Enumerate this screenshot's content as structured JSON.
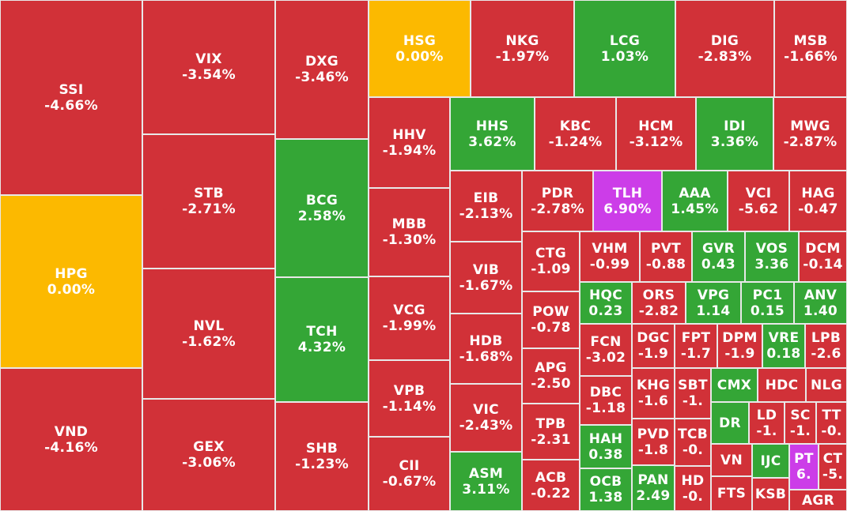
{
  "colors": {
    "down": "#d13138",
    "up": "#34a636",
    "reference": "#fcb900",
    "ceiling": "#cc3de8"
  },
  "chart_data": {
    "type": "treemap",
    "items": [
      {
        "ticker": "SSI",
        "change": "-4.66%",
        "status": "down"
      },
      {
        "ticker": "HPG",
        "change": "0.00%",
        "status": "reference"
      },
      {
        "ticker": "VND",
        "change": "-4.16%",
        "status": "down"
      },
      {
        "ticker": "VIX",
        "change": "-3.54%",
        "status": "down"
      },
      {
        "ticker": "STB",
        "change": "-2.71%",
        "status": "down"
      },
      {
        "ticker": "NVL",
        "change": "-1.62%",
        "status": "down"
      },
      {
        "ticker": "GEX",
        "change": "-3.06%",
        "status": "down"
      },
      {
        "ticker": "DXG",
        "change": "-3.46%",
        "status": "down"
      },
      {
        "ticker": "BCG",
        "change": "2.58%",
        "status": "up"
      },
      {
        "ticker": "TCH",
        "change": "4.32%",
        "status": "up"
      },
      {
        "ticker": "SHB",
        "change": "-1.23%",
        "status": "down"
      },
      {
        "ticker": "HSG",
        "change": "0.00%",
        "status": "reference"
      },
      {
        "ticker": "NKG",
        "change": "-1.97%",
        "status": "down"
      },
      {
        "ticker": "LCG",
        "change": "1.03%",
        "status": "up"
      },
      {
        "ticker": "DIG",
        "change": "-2.83%",
        "status": "down"
      },
      {
        "ticker": "MSB",
        "change": "-1.66%",
        "status": "down"
      },
      {
        "ticker": "HHV",
        "change": "-1.94%",
        "status": "down"
      },
      {
        "ticker": "MBB",
        "change": "-1.30%",
        "status": "down"
      },
      {
        "ticker": "VCG",
        "change": "-1.99%",
        "status": "down"
      },
      {
        "ticker": "VPB",
        "change": "-1.14%",
        "status": "down"
      },
      {
        "ticker": "CII",
        "change": "-0.67%",
        "status": "down"
      },
      {
        "ticker": "HHS",
        "change": "3.62%",
        "status": "up"
      },
      {
        "ticker": "KBC",
        "change": "-1.24%",
        "status": "down"
      },
      {
        "ticker": "HCM",
        "change": "-3.12%",
        "status": "down"
      },
      {
        "ticker": "IDI",
        "change": "3.36%",
        "status": "up"
      },
      {
        "ticker": "MWG",
        "change": "-2.87%",
        "status": "down"
      },
      {
        "ticker": "EIB",
        "change": "-2.13%",
        "status": "down"
      },
      {
        "ticker": "VIB",
        "change": "-1.67%",
        "status": "down"
      },
      {
        "ticker": "HDB",
        "change": "-1.68%",
        "status": "down"
      },
      {
        "ticker": "VIC",
        "change": "-2.43%",
        "status": "down"
      },
      {
        "ticker": "ASM",
        "change": "3.11%",
        "status": "up"
      },
      {
        "ticker": "PDR",
        "change": "-2.78%",
        "status": "down"
      },
      {
        "ticker": "TLH",
        "change": "6.90%",
        "status": "ceiling"
      },
      {
        "ticker": "AAA",
        "change": "1.45%",
        "status": "up"
      },
      {
        "ticker": "VCI",
        "change": "-5.62",
        "status": "down"
      },
      {
        "ticker": "HAG",
        "change": "-0.47",
        "status": "down"
      },
      {
        "ticker": "CTG",
        "change": "-1.09",
        "status": "down"
      },
      {
        "ticker": "POW",
        "change": "-0.78",
        "status": "down"
      },
      {
        "ticker": "APG",
        "change": "-2.50",
        "status": "down"
      },
      {
        "ticker": "TPB",
        "change": "-2.31",
        "status": "down"
      },
      {
        "ticker": "ACB",
        "change": "-0.22",
        "status": "down"
      },
      {
        "ticker": "VHM",
        "change": "-0.99",
        "status": "down"
      },
      {
        "ticker": "PVT",
        "change": "-0.88",
        "status": "down"
      },
      {
        "ticker": "GVR",
        "change": "0.43",
        "status": "up"
      },
      {
        "ticker": "VOS",
        "change": "3.36",
        "status": "up"
      },
      {
        "ticker": "DCM",
        "change": "-0.14",
        "status": "down"
      },
      {
        "ticker": "HQC",
        "change": "0.23",
        "status": "up"
      },
      {
        "ticker": "ORS",
        "change": "-2.82",
        "status": "down"
      },
      {
        "ticker": "VPG",
        "change": "1.14",
        "status": "up"
      },
      {
        "ticker": "PC1",
        "change": "0.15",
        "status": "up"
      },
      {
        "ticker": "ANV",
        "change": "1.40",
        "status": "up"
      },
      {
        "ticker": "FCN",
        "change": "-3.02",
        "status": "down"
      },
      {
        "ticker": "DGC",
        "change": "-1.9",
        "status": "down"
      },
      {
        "ticker": "FPT",
        "change": "-1.7",
        "status": "down"
      },
      {
        "ticker": "DPM",
        "change": "-1.9",
        "status": "down"
      },
      {
        "ticker": "VRE",
        "change": "0.18",
        "status": "up"
      },
      {
        "ticker": "LPB",
        "change": "-2.6",
        "status": "down"
      },
      {
        "ticker": "DBC",
        "change": "-1.18",
        "status": "down"
      },
      {
        "ticker": "KHG",
        "change": "-1.6",
        "status": "down"
      },
      {
        "ticker": "SBT",
        "change": "-1.",
        "status": "down"
      },
      {
        "ticker": "CMX",
        "change": "",
        "status": "up"
      },
      {
        "ticker": "HDC",
        "change": "",
        "status": "down"
      },
      {
        "ticker": "NLG",
        "change": "",
        "status": "down"
      },
      {
        "ticker": "HAH",
        "change": "0.38",
        "status": "up"
      },
      {
        "ticker": "PVD",
        "change": "-1.8",
        "status": "down"
      },
      {
        "ticker": "TCB",
        "change": "-0.",
        "status": "down"
      },
      {
        "ticker": "DR",
        "change": "",
        "status": "up"
      },
      {
        "ticker": "LD",
        "change": "-1.",
        "status": "down"
      },
      {
        "ticker": "SC",
        "change": "-1.",
        "status": "down"
      },
      {
        "ticker": "TT",
        "change": "-0.",
        "status": "down"
      },
      {
        "ticker": "OCB",
        "change": "1.38",
        "status": "up"
      },
      {
        "ticker": "PAN",
        "change": "2.49",
        "status": "up"
      },
      {
        "ticker": "HD",
        "change": "-0.",
        "status": "down"
      },
      {
        "ticker": "VN",
        "change": "",
        "status": "down"
      },
      {
        "ticker": "IJC",
        "change": "",
        "status": "up"
      },
      {
        "ticker": "PT",
        "change": "6.",
        "status": "ceiling"
      },
      {
        "ticker": "CT",
        "change": "-5.",
        "status": "down"
      },
      {
        "ticker": "FTS",
        "change": "",
        "status": "down"
      },
      {
        "ticker": "KSB",
        "change": "",
        "status": "down"
      },
      {
        "ticker": "AGR",
        "change": "",
        "status": "down"
      }
    ]
  }
}
